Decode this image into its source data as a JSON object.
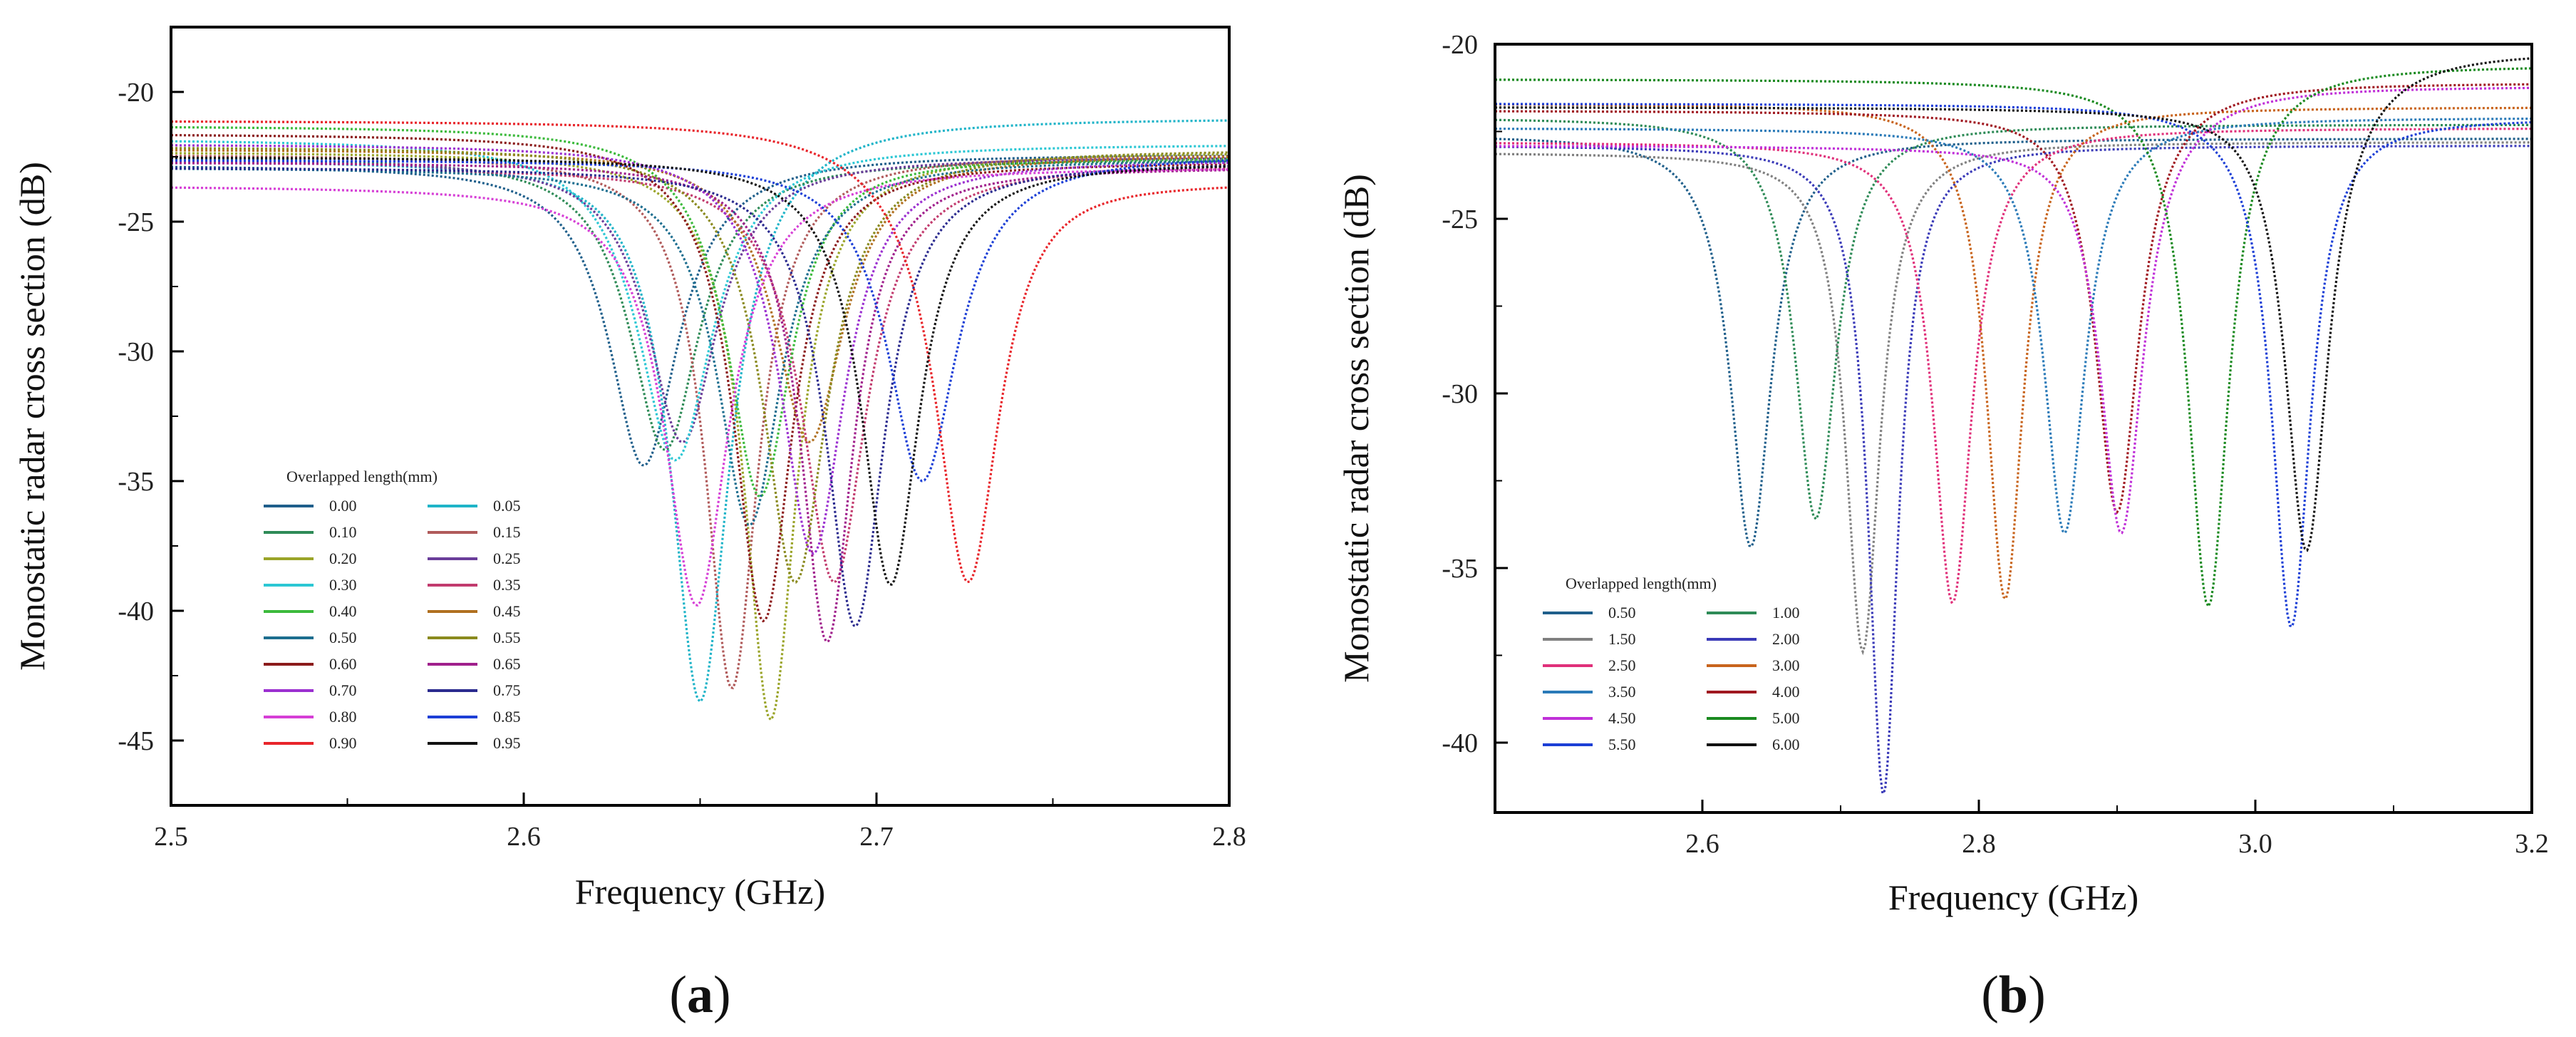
{
  "chart_data": [
    {
      "panel": "(a)",
      "panel_letter": "a",
      "type": "line",
      "title": "",
      "xlabel": "Frequency (GHz)",
      "ylabel": "Monostatic radar cross section (dB)",
      "xlim": [
        2.5,
        2.8
      ],
      "ylim": [
        -47.5,
        -17.5
      ],
      "xticks": [
        2.5,
        2.6,
        2.7,
        2.8
      ],
      "xtick_labels": [
        "2.5",
        "2.6",
        "2.7",
        "2.8"
      ],
      "yticks": [
        -20,
        -25,
        -30,
        -35,
        -40,
        -45
      ],
      "ytick_labels": [
        "-20",
        "-25",
        "-30",
        "-35",
        "-40",
        "-45"
      ],
      "grid": false,
      "legend": {
        "title": "Overlapped length(mm)",
        "placement": "lower-left",
        "columns": 2
      },
      "series": [
        {
          "name": "0.00",
          "color": "#1f5f8b",
          "f0": 2.634,
          "min": -34.4,
          "base_left": -22.8,
          "base_right": -22.4,
          "width": 0.012
        },
        {
          "name": "0.05",
          "color": "#1fb4c8",
          "f0": 2.65,
          "min": -43.5,
          "base_left": -22.6,
          "base_right": -21.0,
          "width": 0.01
        },
        {
          "name": "0.10",
          "color": "#2e8b57",
          "f0": 2.64,
          "min": -33.8,
          "base_left": -22.5,
          "base_right": -22.6,
          "width": 0.012
        },
        {
          "name": "0.15",
          "color": "#b05a5a",
          "f0": 2.659,
          "min": -43.0,
          "base_left": -22.4,
          "base_right": -22.4,
          "width": 0.009
        },
        {
          "name": "0.20",
          "color": "#9aa428",
          "f0": 2.67,
          "min": -44.2,
          "base_left": -22.3,
          "base_right": -22.3,
          "width": 0.009
        },
        {
          "name": "0.25",
          "color": "#6a3d9a",
          "f0": 2.645,
          "min": -33.5,
          "base_left": -22.6,
          "base_right": -22.5,
          "width": 0.012
        },
        {
          "name": "0.30",
          "color": "#2cc7d4",
          "f0": 2.643,
          "min": -34.2,
          "base_left": -21.8,
          "base_right": -22.0,
          "width": 0.013
        },
        {
          "name": "0.35",
          "color": "#c23b6e",
          "f0": 2.688,
          "min": -38.9,
          "base_left": -22.9,
          "base_right": -22.8,
          "width": 0.011
        },
        {
          "name": "0.40",
          "color": "#3cba3c",
          "f0": 2.667,
          "min": -35.6,
          "base_left": -21.3,
          "base_right": -22.5,
          "width": 0.011
        },
        {
          "name": "0.45",
          "color": "#b07020",
          "f0": 2.681,
          "min": -33.5,
          "base_left": -22.2,
          "base_right": -22.4,
          "width": 0.012
        },
        {
          "name": "0.50",
          "color": "#1d6e8f",
          "f0": 2.664,
          "min": -36.7,
          "base_left": -22.9,
          "base_right": -22.6,
          "width": 0.011
        },
        {
          "name": "0.55",
          "color": "#8a8a1e",
          "f0": 2.677,
          "min": -38.9,
          "base_left": -22.1,
          "base_right": -22.2,
          "width": 0.011
        },
        {
          "name": "0.60",
          "color": "#8b1a1a",
          "f0": 2.668,
          "min": -40.4,
          "base_left": -21.6,
          "base_right": -22.7,
          "width": 0.01
        },
        {
          "name": "0.65",
          "color": "#a0208c",
          "f0": 2.686,
          "min": -41.2,
          "base_left": -22.7,
          "base_right": -22.9,
          "width": 0.009
        },
        {
          "name": "0.70",
          "color": "#9b30d0",
          "f0": 2.682,
          "min": -37.8,
          "base_left": -22.0,
          "base_right": -22.6,
          "width": 0.011
        },
        {
          "name": "0.75",
          "color": "#2b2b8f",
          "f0": 2.694,
          "min": -40.6,
          "base_left": -22.9,
          "base_right": -22.7,
          "width": 0.01
        },
        {
          "name": "0.80",
          "color": "#d63fd6",
          "f0": 2.649,
          "min": -39.8,
          "base_left": -23.6,
          "base_right": -22.9,
          "width": 0.011
        },
        {
          "name": "0.85",
          "color": "#1c3fd6",
          "f0": 2.713,
          "min": -35.0,
          "base_left": -22.6,
          "base_right": -22.4,
          "width": 0.012
        },
        {
          "name": "0.90",
          "color": "#e8242a",
          "f0": 2.726,
          "min": -38.9,
          "base_left": -21.1,
          "base_right": -23.4,
          "width": 0.011
        },
        {
          "name": "0.95",
          "color": "#111111",
          "f0": 2.704,
          "min": -39.0,
          "base_left": -22.5,
          "base_right": -22.7,
          "width": 0.01
        }
      ]
    },
    {
      "panel": "(b)",
      "panel_letter": "b",
      "type": "line",
      "title": "",
      "xlabel": "Frequency (GHz)",
      "ylabel": "Monostatic radar cross section (dB)",
      "xlim": [
        2.45,
        3.2
      ],
      "ylim": [
        -42,
        -20
      ],
      "xticks": [
        2.6,
        2.8,
        3.0,
        3.2
      ],
      "xtick_labels": [
        "2.6",
        "2.8",
        "3.0",
        "3.2"
      ],
      "yticks": [
        -20,
        -25,
        -30,
        -35,
        -40
      ],
      "ytick_labels": [
        "-20",
        "-25",
        "-30",
        "-35",
        "-40"
      ],
      "grid": false,
      "legend": {
        "title": "Overlapped length(mm)",
        "placement": "lower-left",
        "columns": 2
      },
      "series": [
        {
          "name": "0.50",
          "color": "#1f5f8b",
          "f0": 2.635,
          "min": -34.4,
          "base_left": -22.6,
          "base_right": -22.7,
          "width": 0.018
        },
        {
          "name": "1.00",
          "color": "#2e8b57",
          "f0": 2.682,
          "min": -33.6,
          "base_left": -22.1,
          "base_right": -22.3,
          "width": 0.018
        },
        {
          "name": "1.50",
          "color": "#808080",
          "f0": 2.716,
          "min": -37.4,
          "base_left": -23.1,
          "base_right": -22.8,
          "width": 0.015
        },
        {
          "name": "2.00",
          "color": "#3a3ab8",
          "f0": 2.731,
          "min": -41.5,
          "base_left": -22.9,
          "base_right": -22.9,
          "width": 0.013
        },
        {
          "name": "2.50",
          "color": "#e0307a",
          "f0": 2.781,
          "min": -36.0,
          "base_left": -22.8,
          "base_right": -22.4,
          "width": 0.017
        },
        {
          "name": "3.00",
          "color": "#c8641c",
          "f0": 2.819,
          "min": -35.9,
          "base_left": -21.7,
          "base_right": -21.8,
          "width": 0.016
        },
        {
          "name": "3.50",
          "color": "#2a7ab8",
          "f0": 2.862,
          "min": -34.0,
          "base_left": -22.4,
          "base_right": -22.1,
          "width": 0.018
        },
        {
          "name": "4.00",
          "color": "#a01820",
          "f0": 2.9,
          "min": -33.4,
          "base_left": -21.9,
          "base_right": -21.1,
          "width": 0.019
        },
        {
          "name": "4.50",
          "color": "#c030d8",
          "f0": 2.903,
          "min": -34.0,
          "base_left": -22.9,
          "base_right": -21.2,
          "width": 0.019
        },
        {
          "name": "5.00",
          "color": "#1a8a20",
          "f0": 2.966,
          "min": -36.1,
          "base_left": -21.0,
          "base_right": -20.6,
          "width": 0.018
        },
        {
          "name": "5.50",
          "color": "#1c3fd6",
          "f0": 3.026,
          "min": -36.7,
          "base_left": -21.7,
          "base_right": -22.1,
          "width": 0.017
        },
        {
          "name": "6.00",
          "color": "#111111",
          "f0": 3.037,
          "min": -34.5,
          "base_left": -21.8,
          "base_right": -20.2,
          "width": 0.019
        }
      ]
    }
  ]
}
